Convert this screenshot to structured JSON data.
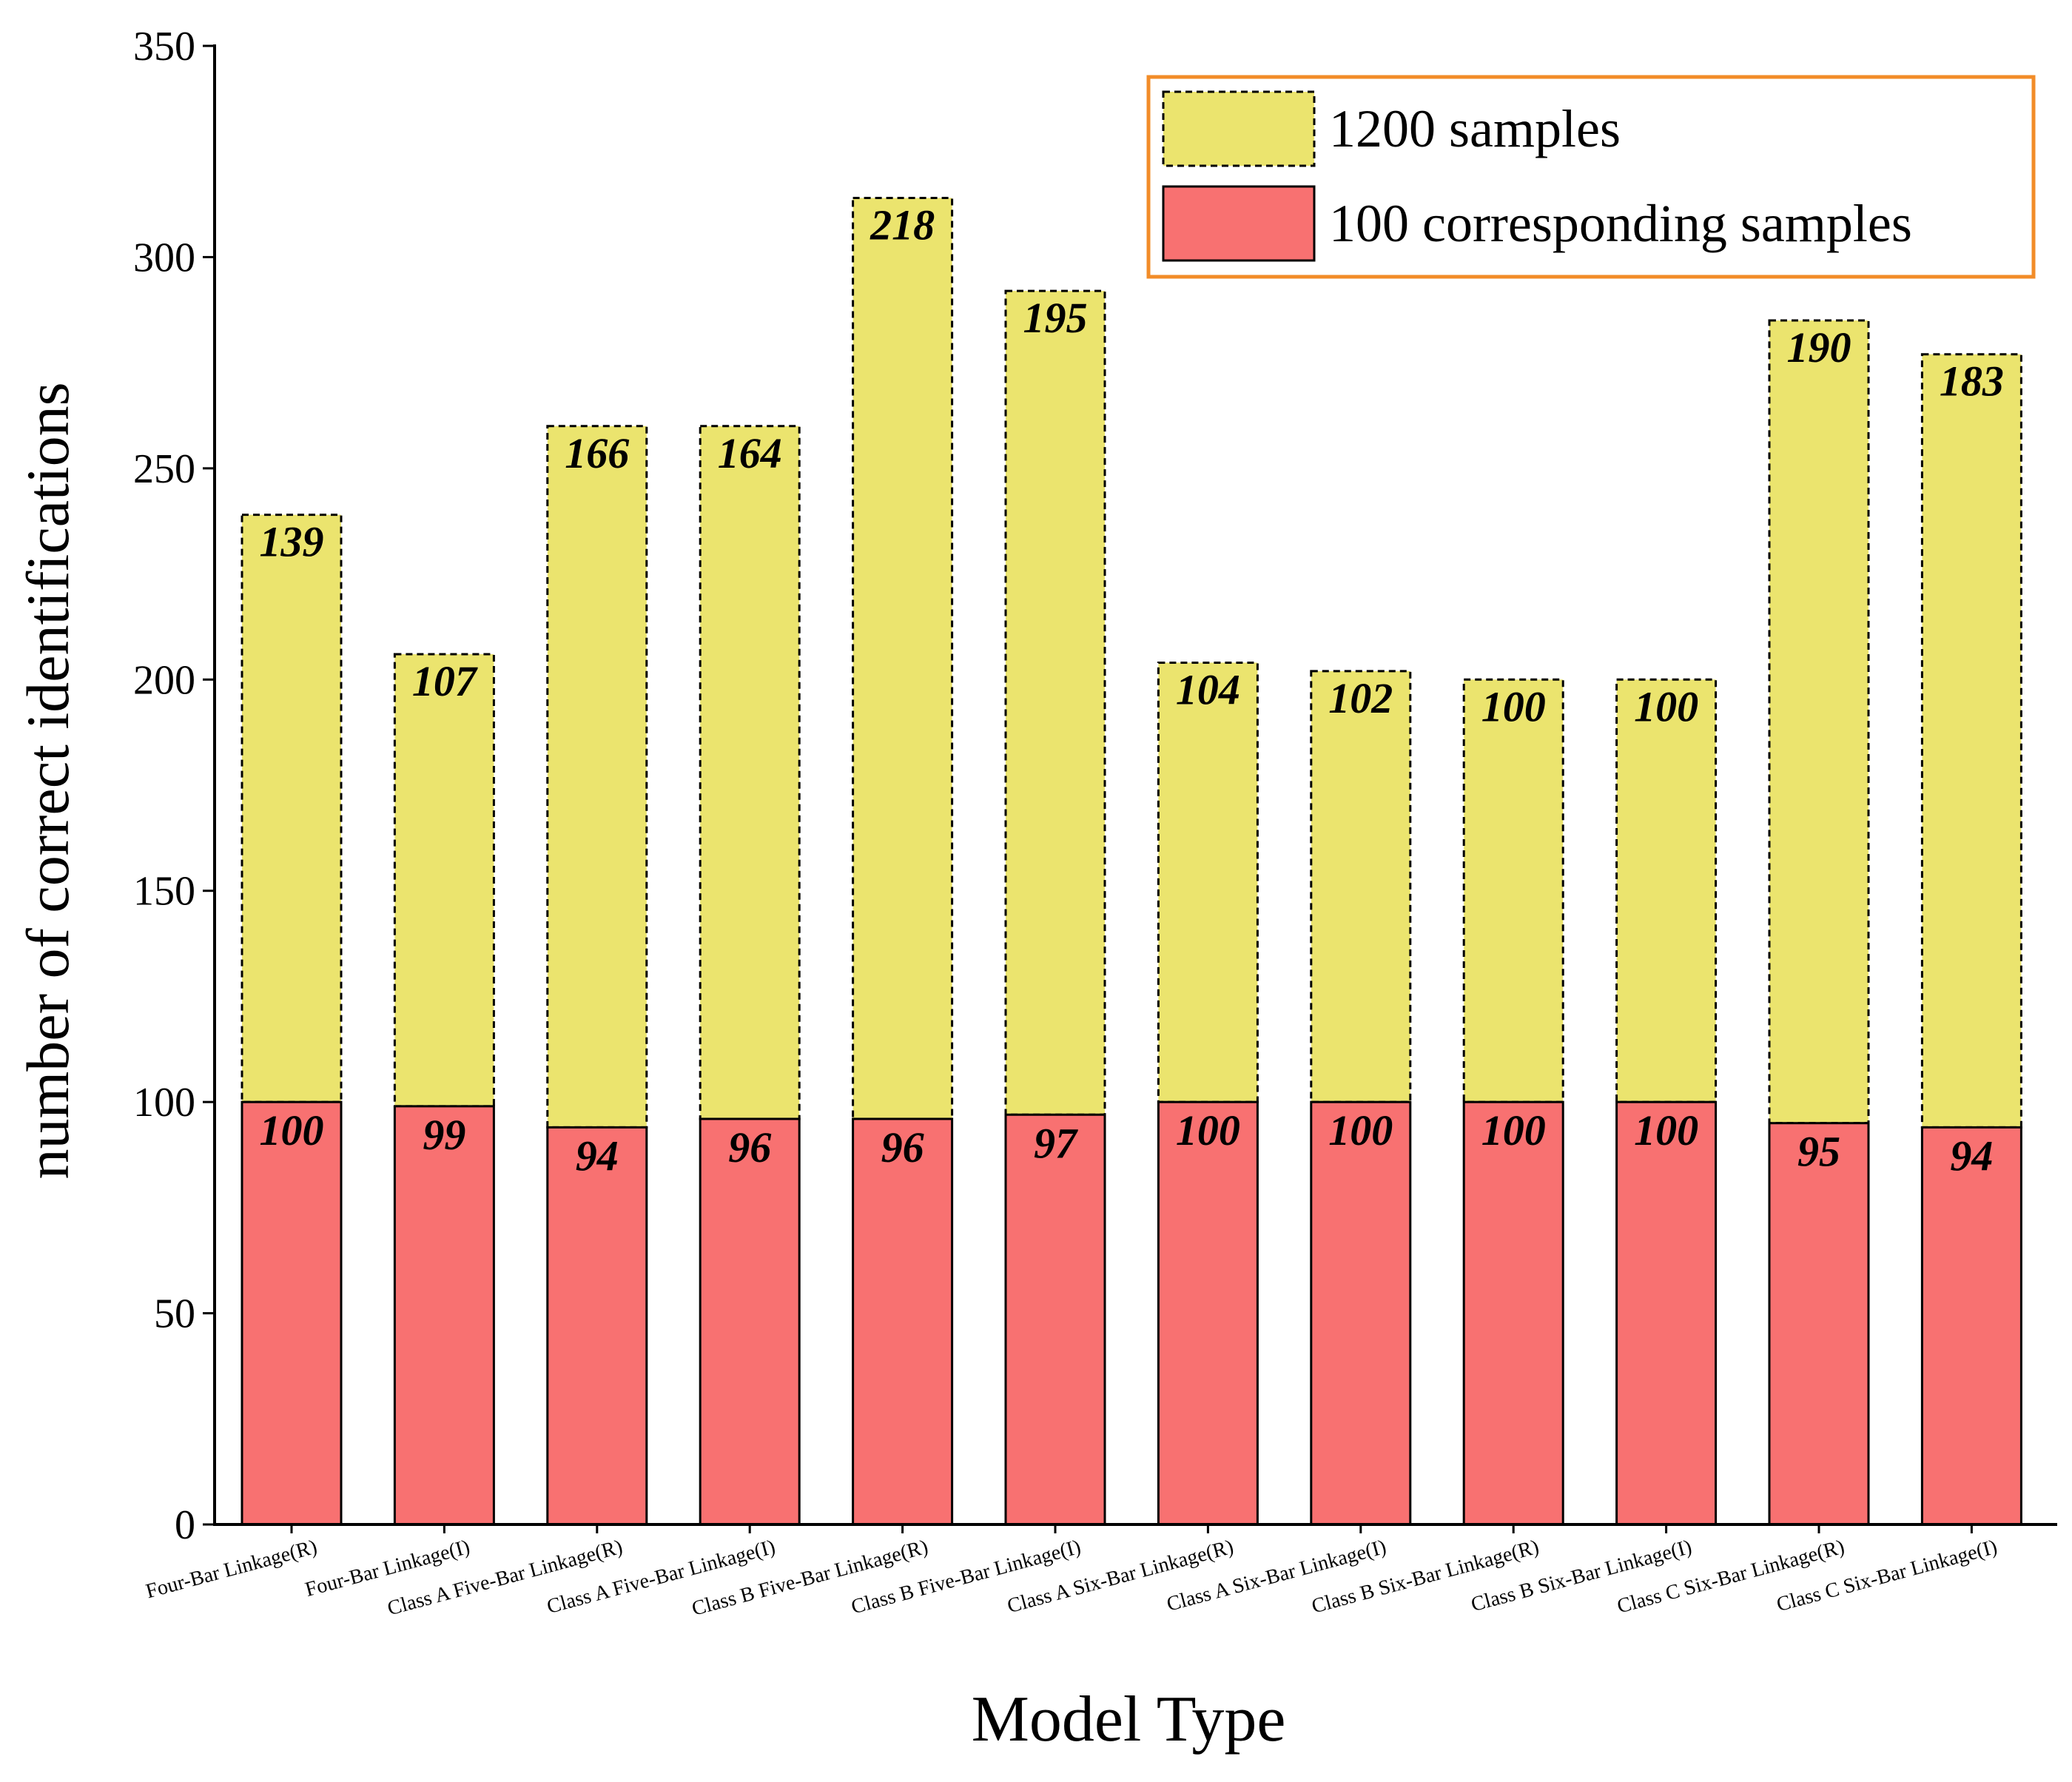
{
  "chart_data": {
    "type": "bar",
    "stacked": true,
    "title": "",
    "xlabel": "Model Type",
    "ylabel": "number of correct identifications",
    "ylim": [
      0,
      350
    ],
    "yticks": [
      0,
      50,
      100,
      150,
      200,
      250,
      300,
      350
    ],
    "categories": [
      "Four-Bar Linkage(R)",
      "Four-Bar Linkage(I)",
      "Class A Five-Bar Linkage(R)",
      "Class A Five-Bar Linkage(I)",
      "Class B Five-Bar Linkage(R)",
      "Class B Five-Bar Linkage(I)",
      "Class A Six-Bar Linkage(R)",
      "Class A Six-Bar Linkage(I)",
      "Class B Six-Bar Linkage(R)",
      "Class B Six-Bar Linkage(I)",
      "Class C Six-Bar Linkage(R)",
      "Class C Six-Bar Linkage(I)"
    ],
    "series": [
      {
        "name": "100 corresponding samples",
        "color": "#f87171",
        "values": [
          100,
          99,
          94,
          96,
          96,
          97,
          100,
          100,
          100,
          100,
          95,
          94
        ]
      },
      {
        "name": "1200 samples",
        "color": "#ebe46e",
        "values": [
          139,
          107,
          166,
          164,
          218,
          195,
          104,
          102,
          100,
          100,
          190,
          183
        ]
      }
    ],
    "legend": {
      "position": "top-right",
      "order": [
        "1200 samples",
        "100 corresponding samples"
      ],
      "border_color": "#f28c28"
    }
  }
}
